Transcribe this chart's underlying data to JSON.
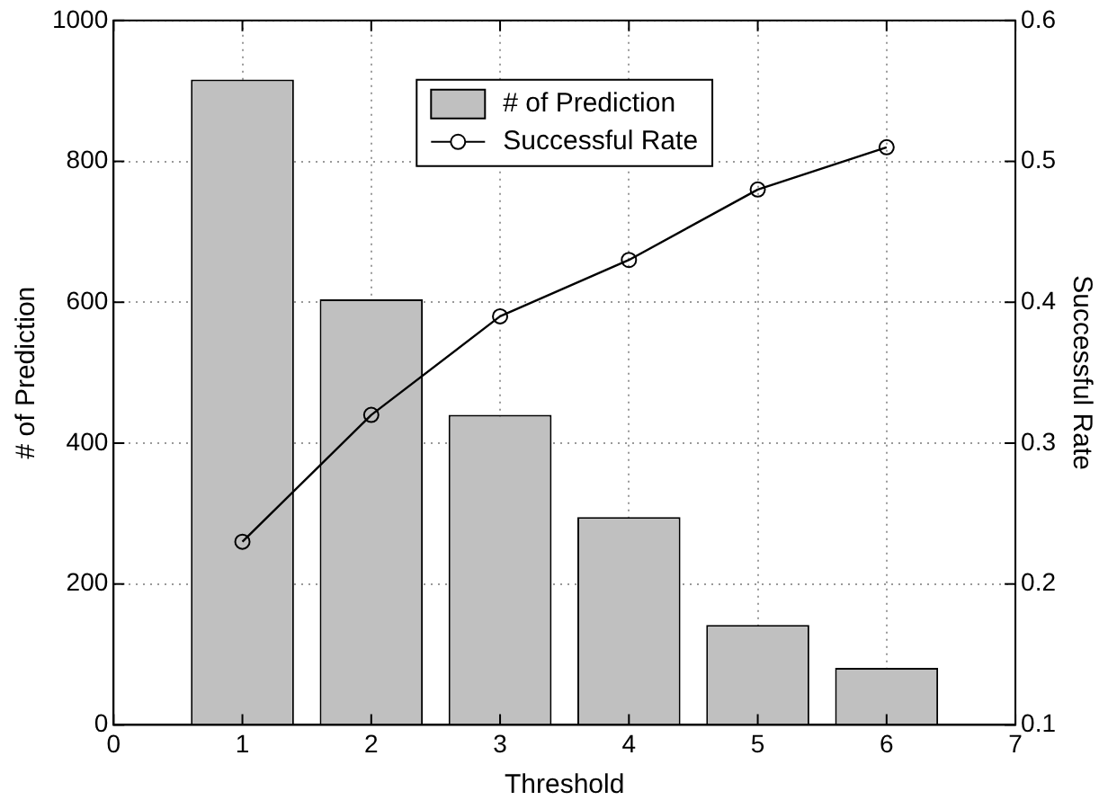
{
  "chart_data": {
    "type": "bar",
    "xlabel": "Threshold",
    "ylabel": "# of Prediction",
    "y2label": "Successful Rate",
    "x": [
      1,
      2,
      3,
      4,
      5,
      6
    ],
    "series": [
      {
        "name": "# of Prediction",
        "color": "#c0c0c0",
        "values": [
          916,
          604,
          440,
          295,
          142,
          81
        ]
      },
      {
        "name": "Successful Rate",
        "type": "line",
        "axis": "y2",
        "color": "#000000",
        "marker": "circle",
        "line_style": "solid",
        "values": [
          0.23,
          0.32,
          0.39,
          0.43,
          0.48,
          0.51
        ]
      }
    ],
    "xlim": [
      0,
      7
    ],
    "xticks": [
      0,
      1,
      2,
      3,
      4,
      5,
      6,
      7
    ],
    "ylim": [
      0,
      1000
    ],
    "yticks": [
      0,
      200,
      400,
      600,
      800,
      1000
    ],
    "y2lim": [
      0.1,
      0.6
    ],
    "y2ticks": [
      0.1,
      0.2,
      0.3,
      0.4,
      0.5,
      0.6
    ],
    "grid": true,
    "legend": "top"
  }
}
